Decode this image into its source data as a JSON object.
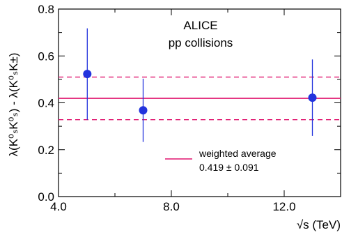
{
  "chart_data": {
    "type": "scatter",
    "title": "",
    "annotations": [
      "ALICE",
      "pp collisions"
    ],
    "xlabel": "√s (TeV)",
    "ylabel": "λ(K⁰ₛK⁰ₛ) - λ(K⁰ₛK±)",
    "xlim": [
      4.0,
      14.0
    ],
    "ylim": [
      0.0,
      0.8
    ],
    "xticks": [
      4.0,
      8.0,
      12.0
    ],
    "yticks": [
      0.0,
      0.2,
      0.4,
      0.6,
      0.8
    ],
    "xtick_labels": [
      "4.0",
      "8.0",
      "12.0"
    ],
    "ytick_labels": [
      "0.0",
      "0.2",
      "0.4",
      "0.6",
      "0.8"
    ],
    "grid": false,
    "series": [
      {
        "x": [
          5.02,
          7.0,
          13.0
        ],
        "y": [
          0.523,
          0.368,
          0.422
        ],
        "yerr": [
          0.195,
          0.135,
          0.163
        ],
        "color": "#2233dd"
      }
    ],
    "reference_lines": {
      "average": 0.419,
      "upper": 0.51,
      "lower": 0.328,
      "color": "#e0146e"
    },
    "legend": {
      "entries": [
        "weighted average",
        "0.419 ± 0.091"
      ]
    }
  }
}
